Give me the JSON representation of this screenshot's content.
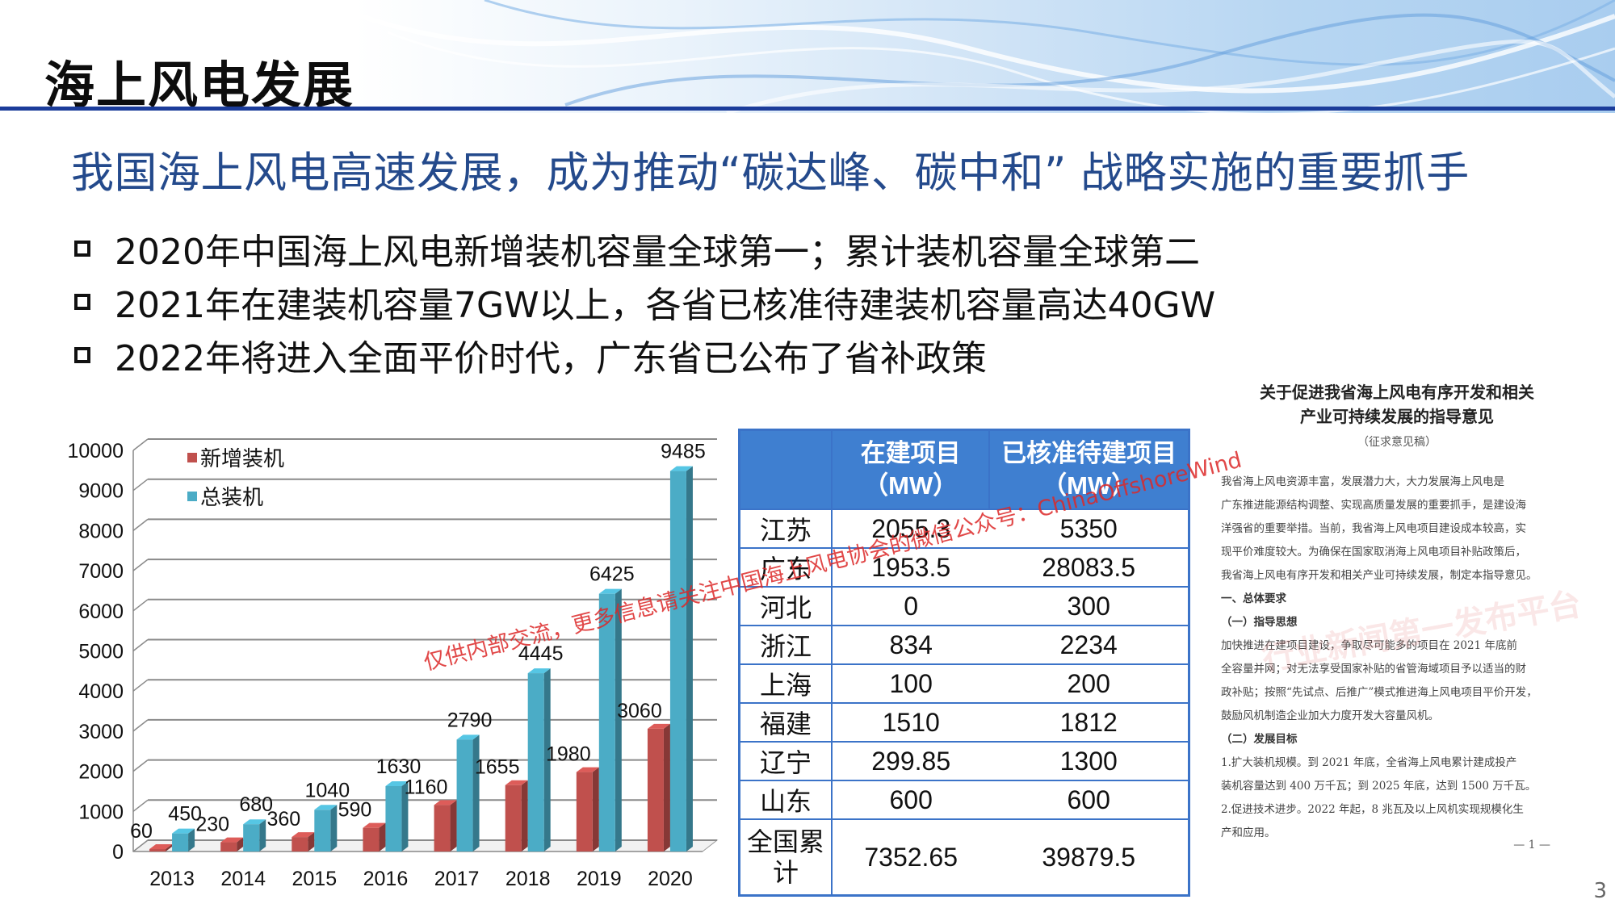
{
  "header": {
    "title": "海上风电发展",
    "subtitle": "我国海上风电高速发展，成为推动“碳达峰、碳中和” 战略实施的重要抓手"
  },
  "bullets": [
    "2020年中国海上风电新增装机容量全球第一；累计装机容量全球第二",
    "2021年在建装机容量7GW以上，各省已核准待建装机容量高达40GW",
    "2022年将进入全面平价时代，广东省已公布了省补政策"
  ],
  "chart_data": {
    "type": "bar",
    "categories": [
      "2013",
      "2014",
      "2015",
      "2016",
      "2017",
      "2018",
      "2019",
      "2020"
    ],
    "series": [
      {
        "name": "新增装机",
        "values": [
          60,
          230,
          360,
          590,
          1160,
          1655,
          1980,
          3060
        ],
        "color": "#c0504d"
      },
      {
        "name": "总装机",
        "values": [
          450,
          680,
          1040,
          1630,
          2790,
          4445,
          6425,
          9485
        ],
        "color": "#4bacc6"
      }
    ],
    "ylim": [
      0,
      10000
    ],
    "yticks": [
      0,
      1000,
      2000,
      3000,
      4000,
      5000,
      6000,
      7000,
      8000,
      9000,
      10000
    ],
    "legend_position": "top-left",
    "grid": true,
    "style": "3d-bar"
  },
  "table": {
    "headers": [
      "",
      "在建项目（MW）",
      "已核准待建项目（MW）"
    ],
    "rows": [
      {
        "province": "江苏",
        "building": "2055.3",
        "approved": "5350"
      },
      {
        "province": "广东",
        "building": "1953.5",
        "approved": "28083.5"
      },
      {
        "province": "河北",
        "building": "0",
        "approved": "300"
      },
      {
        "province": "浙江",
        "building": "834",
        "approved": "2234"
      },
      {
        "province": "上海",
        "building": "100",
        "approved": "200"
      },
      {
        "province": "福建",
        "building": "1510",
        "approved": "1812"
      },
      {
        "province": "辽宁",
        "building": "299.85",
        "approved": "1300"
      },
      {
        "province": "山东",
        "building": "600",
        "approved": "600"
      }
    ],
    "total": {
      "province": "全国累计",
      "building": "7352.65",
      "approved": "39879.5"
    }
  },
  "document": {
    "title_lines": [
      "关于促进我省海上风电有序开发和相关",
      "产业可持续发展的指导意见"
    ],
    "note": "（征求意见稿）",
    "lines": [
      "我省海上风电资源丰富，发展潜力大，大力发展海上风电是",
      "广东推进能源结构调整、实现高质量发展的重要抓手，是建设海",
      "洋强省的重要举措。当前，我省海上风电项目建设成本较高，实",
      "现平价难度较大。为确保在国家取消海上风电项目补贴政策后，",
      "我省海上风电有序开发和相关产业可持续发展，制定本指导意见。"
    ],
    "section1": "一、总体要求",
    "section1a": "（一）指导思想",
    "lines2": [
      "加快推进在建项目建设，争取尽可能多的项目在 2021 年底前",
      "全容量并网；对无法享受国家补贴的省管海域项目予以适当的财",
      "政补贴；按照“先试点、后推广”模式推进海上风电项目平价开发，",
      "鼓励风机制造企业加大力度开发大容量风机。"
    ],
    "section1b": "（二）发展目标",
    "lines3": [
      "1.扩大装机规模。到 2021 年底，全省海上风电累计建成投产",
      "装机容量达到 400 万千瓦；到 2025 年底，达到 1500 万千瓦。",
      "2.促进技术进步。2022 年起，8 兆瓦及以上风机实现规模化生",
      "产和应用。"
    ],
    "page": "— 1 —",
    "stamp_text": "行业新闻第一发布平台"
  },
  "watermark": "仅供内部交流，更多信息请关注中国海上风电协会的微信公众号：ChinaOffshoreWind",
  "page_number": "3"
}
